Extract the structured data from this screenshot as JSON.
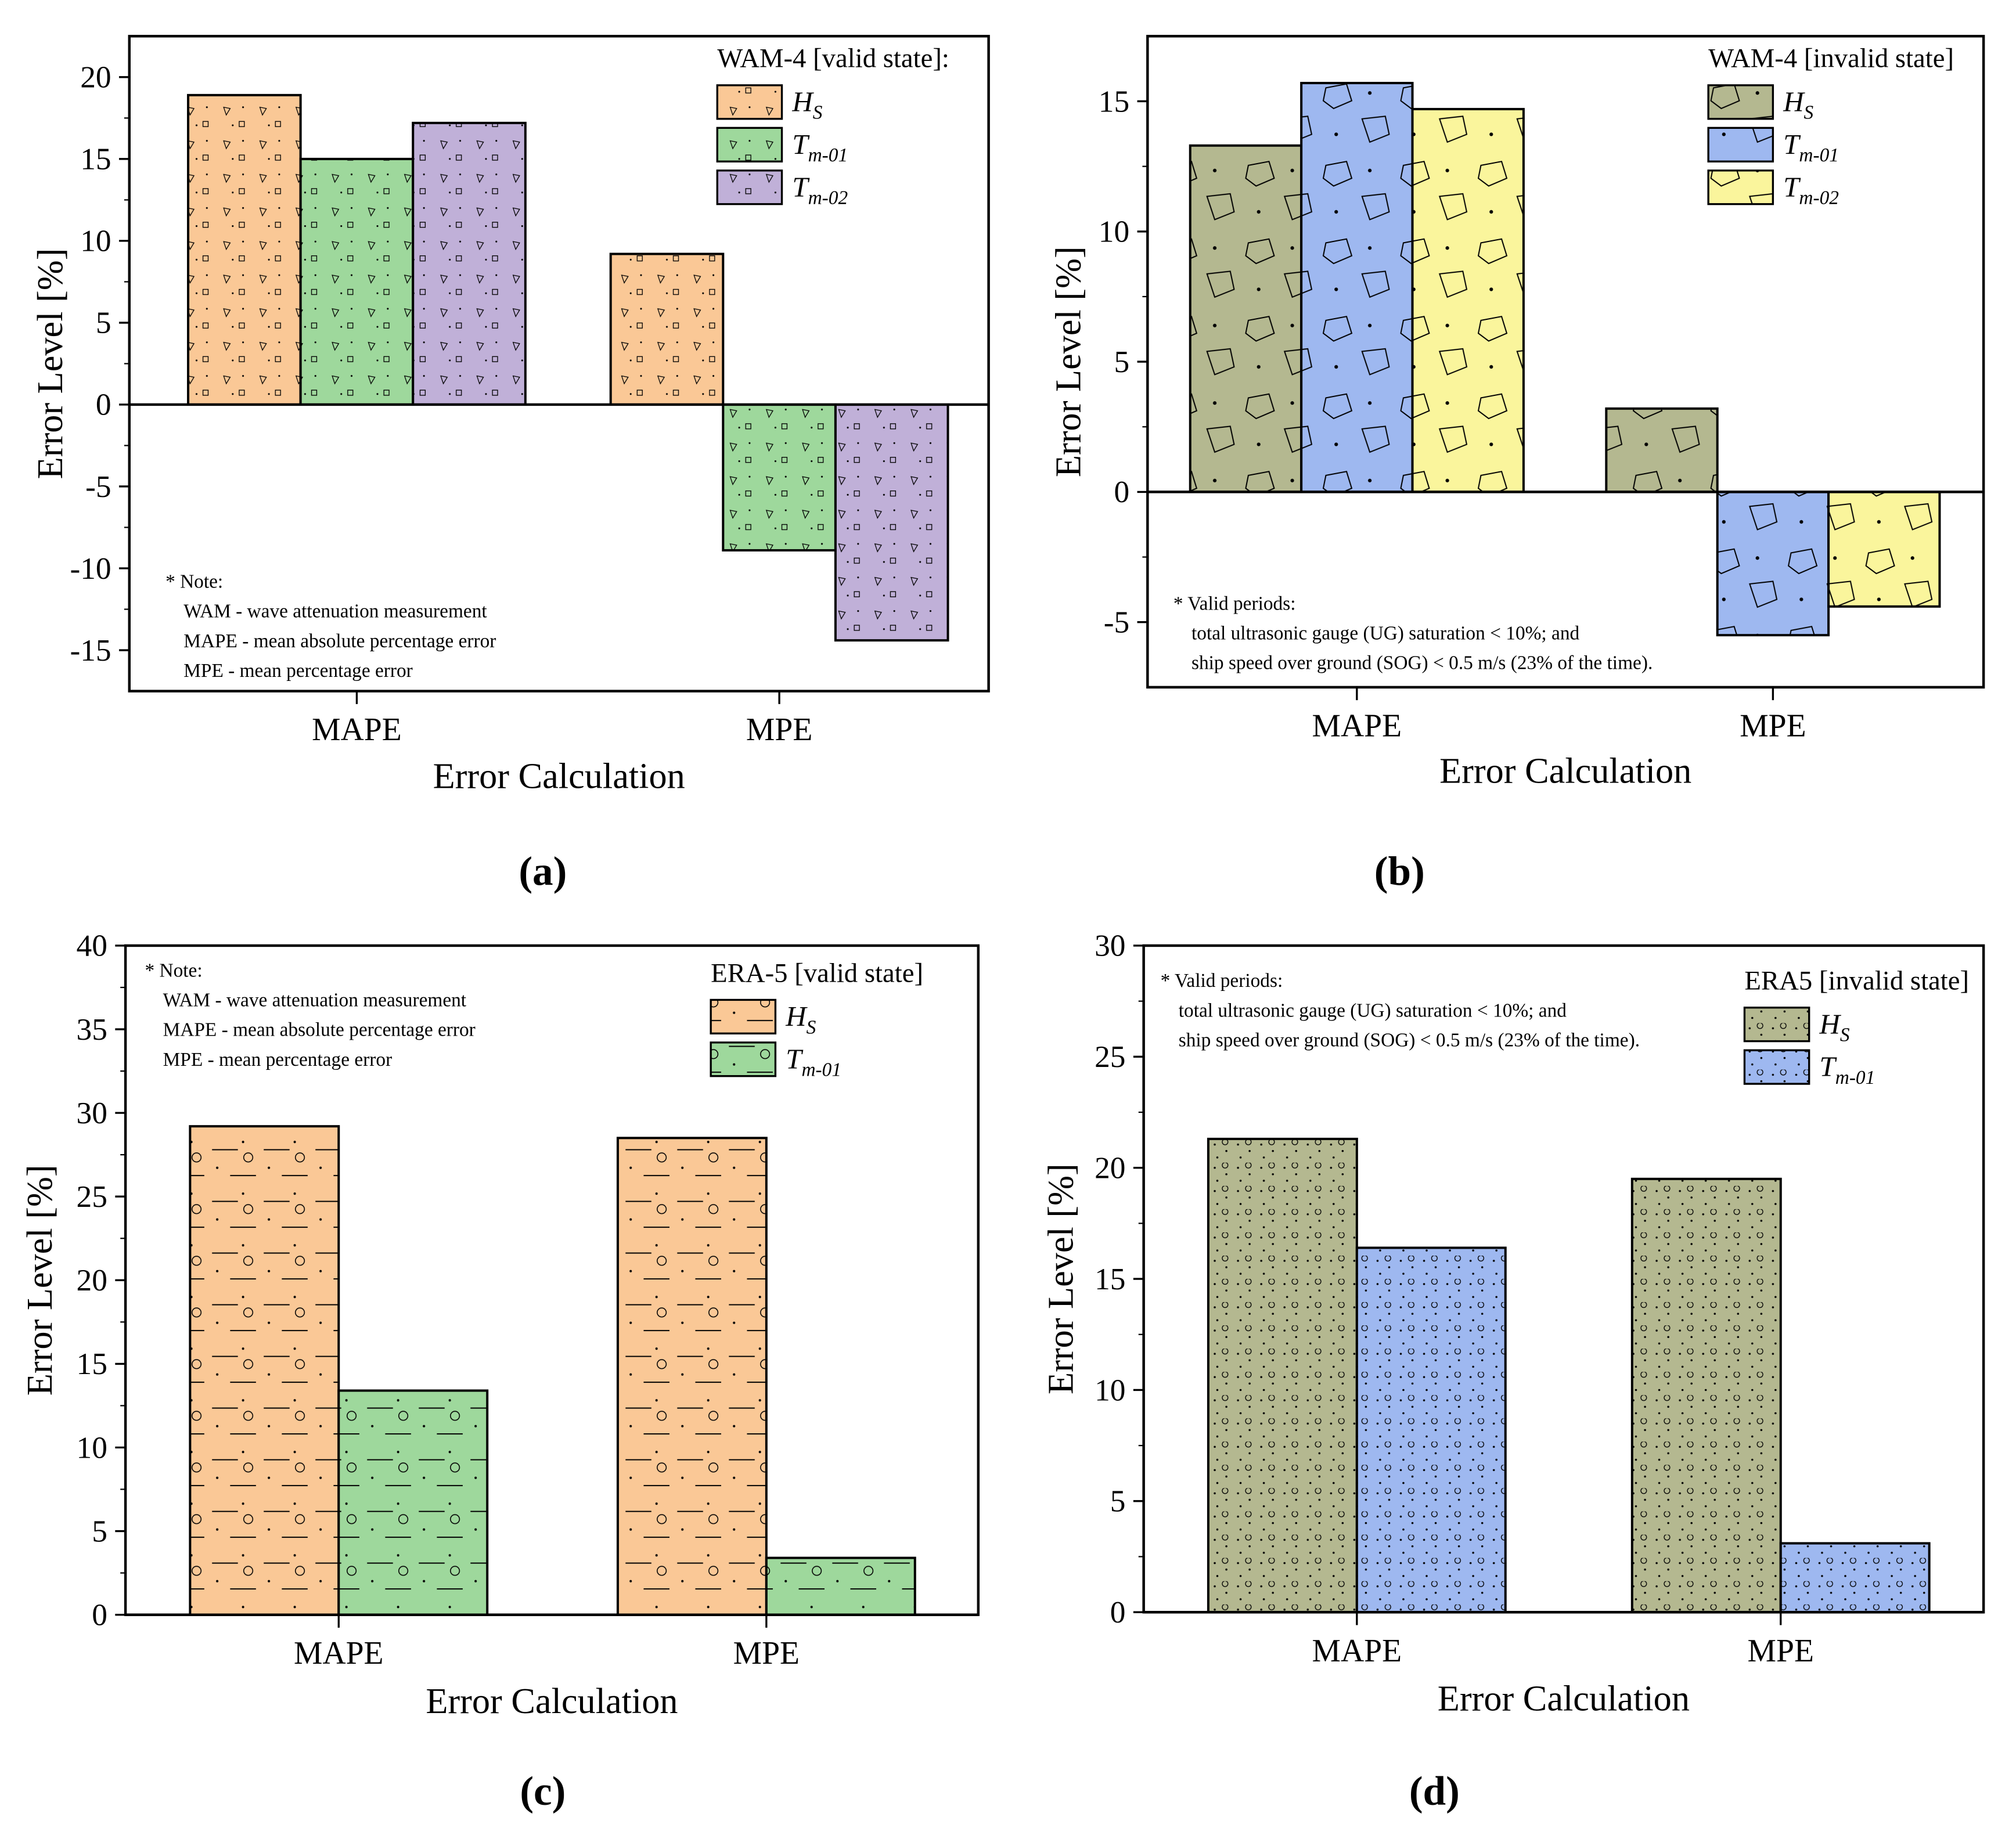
{
  "chart_data": [
    {
      "panel_label": "(a)",
      "type": "bar",
      "title": "",
      "xlabel": "Error Calculation",
      "ylabel": "Error Level [%]",
      "ylim": [
        -17.5,
        22.5
      ],
      "yticks": [
        -15,
        -10,
        -5,
        0,
        5,
        10,
        15,
        20
      ],
      "categories": [
        "MAPE",
        "MPE"
      ],
      "legend_title": "WAM-4 [valid state]:",
      "legend_position": "top-right",
      "series": [
        {
          "symbol": "H",
          "sub": "S",
          "color": "#FAC896",
          "values": [
            18.9,
            9.2
          ]
        },
        {
          "symbol": "T",
          "sub": "m-01",
          "color": "#9ED89C",
          "values": [
            15.0,
            -8.9
          ]
        },
        {
          "symbol": "T",
          "sub": "m-02",
          "color": "#C0B0D8",
          "values": [
            17.2,
            -14.4
          ]
        }
      ],
      "note_position": "bottom-left",
      "note": [
        "* Note:",
        "WAM - wave attenuation measurement",
        "MAPE - mean absolute percentage error",
        "MPE - mean percentage error"
      ]
    },
    {
      "panel_label": "(b)",
      "type": "bar",
      "title": "",
      "xlabel": "Error Calculation",
      "ylabel": "Error Level [%]",
      "ylim": [
        -7.5,
        17.5
      ],
      "yticks": [
        -5,
        0,
        5,
        10,
        15
      ],
      "categories": [
        "MAPE",
        "MPE"
      ],
      "legend_title": "WAM-4 [invalid state]",
      "legend_position": "top-right",
      "series": [
        {
          "symbol": "H",
          "sub": "S",
          "color": "#B4B890",
          "values": [
            13.3,
            3.2
          ]
        },
        {
          "symbol": "T",
          "sub": "m-01",
          "color": "#9EB8F0",
          "values": [
            15.7,
            -5.5
          ]
        },
        {
          "symbol": "T",
          "sub": "m-02",
          "color": "#FAF59C",
          "values": [
            14.7,
            -4.4
          ]
        }
      ],
      "note_position": "bottom-left",
      "note": [
        "* Valid periods:",
        "total ultrasonic gauge (UG) saturation < 10%;  and",
        "ship speed over ground (SOG) < 0.5 m/s (23% of the time)."
      ]
    },
    {
      "panel_label": "(c)",
      "type": "bar",
      "title": "",
      "xlabel": "Error Calculation",
      "ylabel": "Error Level [%]",
      "ylim": [
        0,
        40
      ],
      "yticks": [
        0,
        5,
        10,
        15,
        20,
        25,
        30,
        35,
        40
      ],
      "categories": [
        "MAPE",
        "MPE"
      ],
      "legend_title": "ERA-5 [valid state]",
      "legend_position": "top-right",
      "series": [
        {
          "symbol": "H",
          "sub": "S",
          "color": "#FAC896",
          "values": [
            29.2,
            28.5
          ]
        },
        {
          "symbol": "T",
          "sub": "m-01",
          "color": "#9ED89C",
          "values": [
            13.4,
            3.4
          ]
        }
      ],
      "note_position": "top-left",
      "note": [
        "* Note:",
        "WAM - wave attenuation measurement",
        "MAPE - mean absolute percentage error",
        "MPE - mean percentage error"
      ]
    },
    {
      "panel_label": "(d)",
      "type": "bar",
      "title": "",
      "xlabel": "Error Calculation",
      "ylabel": "Error Level [%]",
      "ylim": [
        0,
        30
      ],
      "yticks": [
        0,
        5,
        10,
        15,
        20,
        25,
        30
      ],
      "categories": [
        "MAPE",
        "MPE"
      ],
      "legend_title": "ERA5 [invalid state]",
      "legend_position": "top-right",
      "series": [
        {
          "symbol": "H",
          "sub": "S",
          "color": "#B4B890",
          "values": [
            21.3,
            19.5
          ]
        },
        {
          "symbol": "T",
          "sub": "m-01",
          "color": "#9EB8F0",
          "values": [
            16.4,
            3.1
          ]
        }
      ],
      "note_position": "top-left",
      "note": [
        "* Valid periods:",
        "total ultrasonic gauge (UG) saturation < 10%;  and",
        "ship speed over ground (SOG) < 0.5 m/s (23% of the time)."
      ]
    }
  ]
}
